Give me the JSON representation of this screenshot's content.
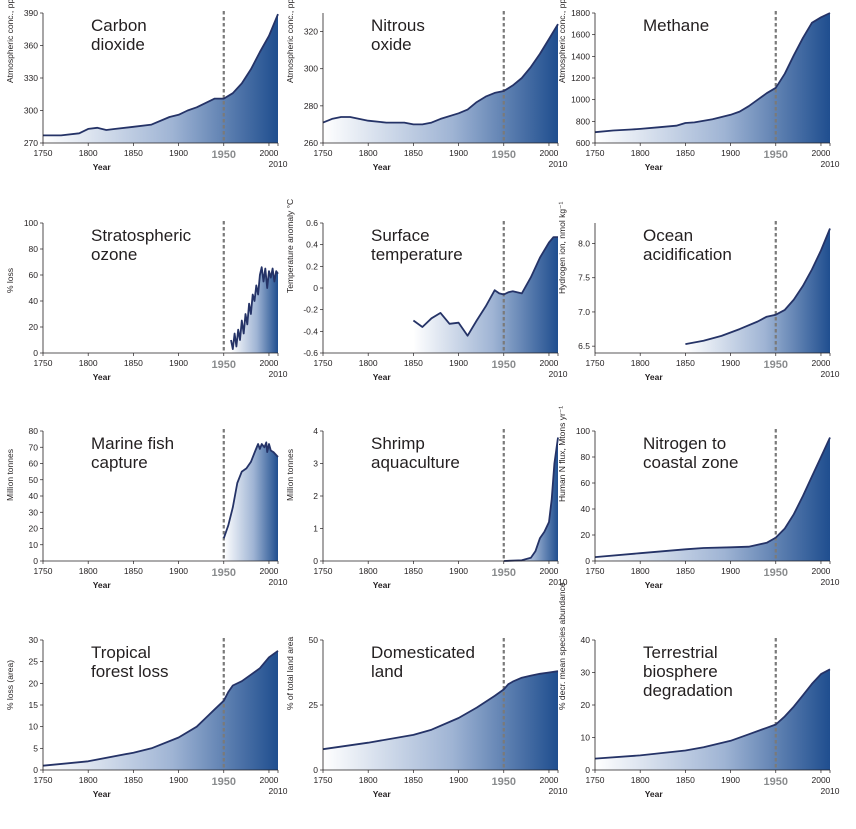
{
  "x_axis": {
    "label": "Year",
    "ticks": [
      "1750",
      "1800",
      "1850",
      "1900",
      "1950",
      "2000"
    ],
    "end_label": "2010",
    "range": [
      1750,
      2010
    ],
    "marker_year": 1950
  },
  "colors": {
    "line": "#253367",
    "fill_dark": "#1f4e8f",
    "marker": "#7a7a7a"
  },
  "chart_data": [
    {
      "type": "area",
      "title": "Carbon\ndioxide",
      "ylabel": "Atmospheric conc., ppm",
      "ylim": [
        270,
        390
      ],
      "yticks": [
        "270",
        "300",
        "330",
        "360",
        "390"
      ],
      "fill_from": 1750,
      "marker": true,
      "series": [
        {
          "x": [
            1750,
            1770,
            1790,
            1800,
            1810,
            1820,
            1830,
            1850,
            1870,
            1890,
            1900,
            1910,
            1920,
            1930,
            1940,
            1950,
            1960,
            1970,
            1980,
            1990,
            2000,
            2010
          ],
          "values": [
            277,
            277,
            279,
            283,
            284,
            282,
            283,
            285,
            287,
            294,
            296,
            300,
            303,
            307,
            311,
            311,
            316,
            325,
            338,
            354,
            369,
            389
          ]
        }
      ]
    },
    {
      "type": "area",
      "title": "Nitrous\noxide",
      "ylabel": "Atmospheric conc., ppb",
      "ylim": [
        260,
        330
      ],
      "yticks": [
        "260",
        "280",
        "300",
        "320"
      ],
      "fill_from": 1750,
      "marker": true,
      "series": [
        {
          "x": [
            1750,
            1760,
            1770,
            1780,
            1800,
            1820,
            1840,
            1850,
            1860,
            1870,
            1880,
            1900,
            1910,
            1920,
            1930,
            1940,
            1950,
            1960,
            1970,
            1980,
            1990,
            2000,
            2010
          ],
          "values": [
            271,
            273,
            274,
            274,
            272,
            271,
            271,
            270,
            270,
            271,
            273,
            276,
            278,
            282,
            285,
            287,
            288,
            291,
            295,
            301,
            308,
            316,
            324
          ]
        }
      ]
    },
    {
      "type": "area",
      "title": "Methane",
      "ylabel": "Atmospheric conc., ppb",
      "ylim": [
        600,
        1800
      ],
      "yticks": [
        "600",
        "800",
        "1000",
        "1200",
        "1400",
        "1600",
        "1800"
      ],
      "fill_from": 1750,
      "marker": true,
      "series": [
        {
          "x": [
            1750,
            1770,
            1790,
            1800,
            1820,
            1840,
            1850,
            1860,
            1880,
            1900,
            1910,
            1920,
            1930,
            1940,
            1950,
            1960,
            1970,
            1980,
            1990,
            2000,
            2010
          ],
          "values": [
            700,
            715,
            725,
            730,
            745,
            760,
            785,
            790,
            820,
            860,
            890,
            940,
            1000,
            1060,
            1110,
            1240,
            1410,
            1570,
            1710,
            1760,
            1800
          ]
        }
      ]
    },
    {
      "type": "area",
      "title": "Stratospheric\nozone",
      "ylabel": "% loss",
      "ylim": [
        0,
        100
      ],
      "yticks": [
        "0",
        "20",
        "40",
        "60",
        "80",
        "100"
      ],
      "fill_from": 1958,
      "marker": true,
      "series": [
        {
          "x": [
            1958,
            1960,
            1962,
            1964,
            1966,
            1968,
            1970,
            1972,
            1974,
            1976,
            1978,
            1980,
            1982,
            1984,
            1986,
            1988,
            1990,
            1992,
            1994,
            1996,
            1998,
            2000,
            2002,
            2004,
            2006,
            2008,
            2010
          ],
          "values": [
            10,
            3,
            15,
            5,
            18,
            10,
            25,
            15,
            30,
            22,
            38,
            30,
            45,
            40,
            52,
            45,
            60,
            66,
            55,
            65,
            50,
            63,
            58,
            65,
            55,
            63,
            61
          ]
        }
      ]
    },
    {
      "type": "area",
      "title": "Surface\ntemperature",
      "ylabel": "Temperature anomaly °C",
      "ylim": [
        -0.6,
        0.6
      ],
      "yticks": [
        "-0.6",
        "-0.4",
        "-0.2",
        "0",
        "0.2",
        "0.4",
        "0.6"
      ],
      "fill_from": 1850,
      "marker": true,
      "series": [
        {
          "x": [
            1850,
            1860,
            1870,
            1880,
            1890,
            1900,
            1910,
            1920,
            1930,
            1940,
            1945,
            1950,
            1955,
            1960,
            1970,
            1980,
            1990,
            2000,
            2005,
            2010
          ],
          "values": [
            -0.3,
            -0.36,
            -0.28,
            -0.23,
            -0.33,
            -0.32,
            -0.44,
            -0.3,
            -0.17,
            -0.02,
            -0.05,
            -0.06,
            -0.04,
            -0.03,
            -0.05,
            0.1,
            0.28,
            0.42,
            0.47,
            0.47
          ]
        }
      ]
    },
    {
      "type": "area",
      "title": "Ocean\nacidification",
      "ylabel": "Hydrogen ion, nmol kg⁻¹",
      "ylim": [
        6.4,
        8.3
      ],
      "yticks": [
        "6.5",
        "7.0",
        "7.5",
        "8.0"
      ],
      "fill_from": 1850,
      "marker": true,
      "series": [
        {
          "x": [
            1850,
            1870,
            1890,
            1910,
            1930,
            1940,
            1950,
            1960,
            1970,
            1980,
            1990,
            2000,
            2010
          ],
          "values": [
            6.53,
            6.58,
            6.65,
            6.75,
            6.86,
            6.93,
            6.96,
            7.03,
            7.18,
            7.38,
            7.62,
            7.9,
            8.22
          ]
        }
      ]
    },
    {
      "type": "area",
      "title": "Marine fish\ncapture",
      "ylabel": "Million tonnes",
      "ylim": [
        0,
        80
      ],
      "yticks": [
        "0",
        "10",
        "20",
        "30",
        "40",
        "50",
        "60",
        "70",
        "80"
      ],
      "fill_from": 1950,
      "marker": true,
      "series": [
        {
          "x": [
            1950,
            1955,
            1960,
            1965,
            1970,
            1975,
            1980,
            1985,
            1988,
            1990,
            1992,
            1995,
            1997,
            1998,
            2000,
            2002,
            2005,
            2010
          ],
          "values": [
            14,
            22,
            33,
            48,
            55,
            57,
            61,
            68,
            72,
            69,
            72,
            70,
            73,
            67,
            72,
            68,
            67,
            64
          ]
        }
      ]
    },
    {
      "type": "area",
      "title": "Shrimp\naquaculture",
      "ylabel": "Million tonnes",
      "ylim": [
        0,
        4
      ],
      "yticks": [
        "0",
        "1",
        "2",
        "3",
        "4"
      ],
      "fill_from": 1950,
      "marker": true,
      "series": [
        {
          "x": [
            1950,
            1970,
            1980,
            1985,
            1990,
            1995,
            2000,
            2003,
            2006,
            2008,
            2010
          ],
          "values": [
            0,
            0.02,
            0.1,
            0.3,
            0.7,
            0.9,
            1.2,
            1.9,
            3.0,
            3.4,
            3.8
          ]
        }
      ]
    },
    {
      "type": "area",
      "title": "Nitrogen to\ncoastal zone",
      "ylabel": "Human N flux, Mtons yr⁻¹",
      "ylim": [
        0,
        100
      ],
      "yticks": [
        "0",
        "20",
        "40",
        "60",
        "80",
        "100"
      ],
      "fill_from": 1750,
      "marker": true,
      "series": [
        {
          "x": [
            1750,
            1800,
            1850,
            1870,
            1900,
            1920,
            1940,
            1950,
            1960,
            1970,
            1980,
            1990,
            2000,
            2010
          ],
          "values": [
            3,
            6,
            9,
            10,
            10.5,
            11,
            14,
            18,
            25,
            36,
            50,
            65,
            80,
            95
          ]
        }
      ]
    },
    {
      "type": "area",
      "title": "Tropical\nforest loss",
      "ylabel": "% loss (area)",
      "ylim": [
        0,
        30
      ],
      "yticks": [
        "0",
        "5",
        "10",
        "15",
        "20",
        "25",
        "30"
      ],
      "fill_from": 1750,
      "marker": true,
      "series": [
        {
          "x": [
            1750,
            1800,
            1850,
            1870,
            1900,
            1920,
            1930,
            1940,
            1950,
            1955,
            1960,
            1970,
            1980,
            1990,
            2000,
            2010
          ],
          "values": [
            1,
            2,
            4,
            5,
            7.5,
            10,
            12,
            14,
            16,
            18,
            19.5,
            20.5,
            22,
            23.5,
            26,
            27.5
          ]
        }
      ]
    },
    {
      "type": "area",
      "title": "Domesticated\nland",
      "ylabel": "% of total land area",
      "ylim": [
        0,
        50
      ],
      "yticks": [
        "0",
        "25",
        "50"
      ],
      "fill_from": 1750,
      "marker": true,
      "series": [
        {
          "x": [
            1750,
            1800,
            1850,
            1870,
            1900,
            1920,
            1940,
            1950,
            1955,
            1960,
            1970,
            1980,
            1990,
            2000,
            2010
          ],
          "values": [
            8,
            10.5,
            13.5,
            15.5,
            20,
            24,
            28.5,
            31,
            33,
            34,
            35.5,
            36.3,
            37,
            37.5,
            38
          ]
        }
      ]
    },
    {
      "type": "area",
      "title": "Terrestrial\nbiosphere\ndegradation",
      "ylabel": "% decr. mean species abundance",
      "ylim": [
        0,
        40
      ],
      "yticks": [
        "0",
        "10",
        "20",
        "30",
        "40"
      ],
      "fill_from": 1750,
      "marker": true,
      "series": [
        {
          "x": [
            1750,
            1800,
            1850,
            1870,
            1900,
            1920,
            1940,
            1950,
            1960,
            1970,
            1980,
            1990,
            2000,
            2010
          ],
          "values": [
            3.5,
            4.5,
            6,
            7,
            9,
            11,
            13,
            14,
            16.5,
            19.5,
            23,
            26.5,
            29.5,
            31
          ]
        }
      ]
    }
  ]
}
